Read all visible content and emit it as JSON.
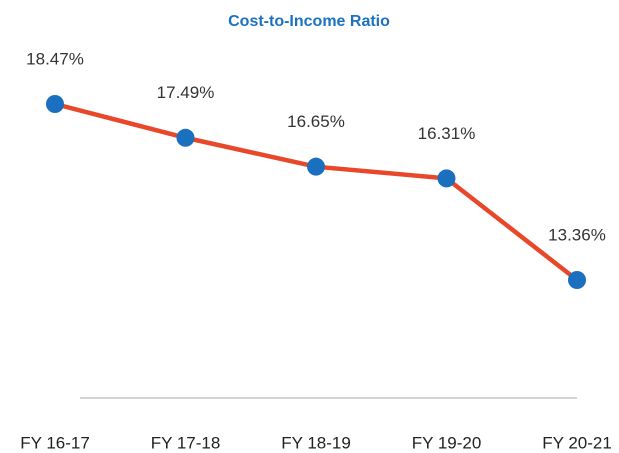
{
  "chart_data": {
    "type": "line",
    "title": "Cost-to-Income Ratio",
    "categories": [
      "FY 16-17",
      "FY 17-18",
      "FY 18-19",
      "FY 19-20",
      "FY 20-21"
    ],
    "series": [
      {
        "name": "Cost-to-Income Ratio",
        "color": "#e8472a",
        "marker_color": "#1b6fbf",
        "values": [
          18.47,
          17.49,
          16.65,
          16.31,
          13.36
        ],
        "value_labels": [
          "18.47%",
          "17.49%",
          "16.65%",
          "16.31%",
          "13.36%"
        ]
      }
    ]
  }
}
